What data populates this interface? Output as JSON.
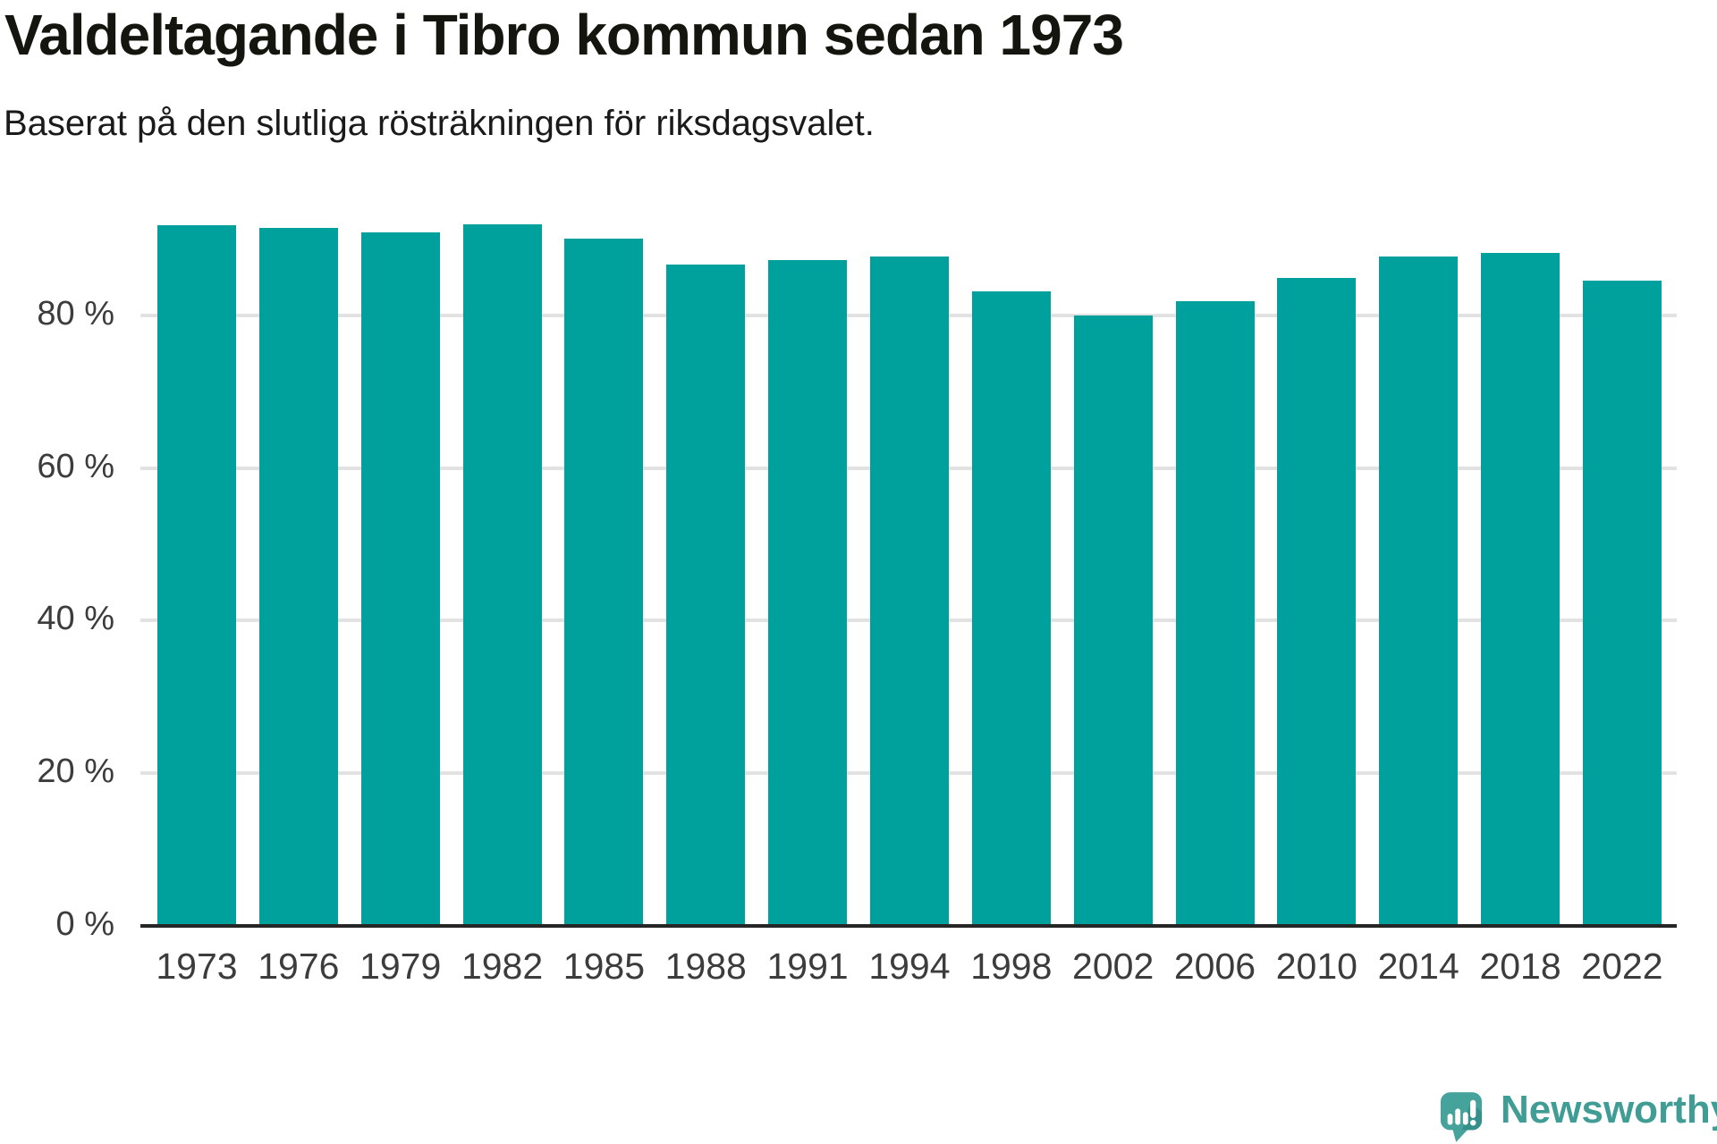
{
  "header": {
    "title": "Valdeltagande i Tibro kommun sedan 1973",
    "subtitle": "Baserat på den slutliga rösträkningen för riksdagsvalet."
  },
  "chart_data": {
    "type": "bar",
    "title": "Valdeltagande i Tibro kommun sedan 1973",
    "subtitle": "Baserat på den slutliga rösträkningen för riksdagsvalet.",
    "unit": "%",
    "categories": [
      "1973",
      "1976",
      "1979",
      "1982",
      "1985",
      "1988",
      "1991",
      "1994",
      "1998",
      "2002",
      "2006",
      "2010",
      "2014",
      "2018",
      "2022"
    ],
    "values": [
      91.8,
      91.5,
      90.9,
      91.9,
      90.0,
      86.7,
      87.2,
      87.7,
      83.1,
      80.0,
      81.9,
      84.9,
      87.7,
      88.2,
      84.6
    ],
    "xlabel": "",
    "ylabel": "",
    "ylim": [
      0,
      100
    ],
    "yticks": [
      {
        "value": 0,
        "label": "0 %"
      },
      {
        "value": 20,
        "label": "20 %"
      },
      {
        "value": 40,
        "label": "40 %"
      },
      {
        "value": 60,
        "label": "60 %"
      },
      {
        "value": 80,
        "label": "80 %"
      }
    ],
    "grid": true,
    "legend": false,
    "data_labels": false,
    "colors": {
      "bar": "#00a19c",
      "gridline": "#e2e2e2",
      "axis": "#262626",
      "tick_text": "#3c3c3c",
      "title_text": "#15150f",
      "subtitle_text": "#1a1a1a"
    }
  },
  "footer": {
    "brand_name": "Newsworthy",
    "logo_icon": "newsworthy-speech-bubble-chart-icon",
    "colors": {
      "logo_bubble": "#46a39b",
      "logo_shadow": "#349089",
      "logo_glyphs": "#ffffff",
      "brand_text": "#3f9d95"
    }
  }
}
